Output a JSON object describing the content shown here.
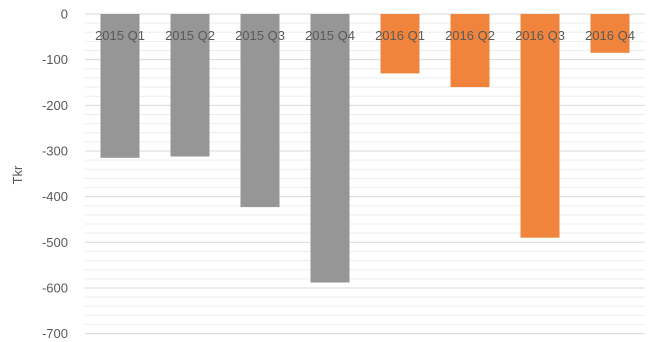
{
  "chart_data": {
    "type": "bar",
    "categories": [
      "2015 Q1",
      "2015 Q2",
      "2015 Q3",
      "2015 Q4",
      "2016 Q1",
      "2016 Q2",
      "2016 Q3",
      "2016 Q4"
    ],
    "values": [
      -315,
      -312,
      -423,
      -588,
      -130,
      -160,
      -490,
      -85
    ],
    "bar_colors": [
      "#969696",
      "#969696",
      "#969696",
      "#969696",
      "#F0843C",
      "#F0843C",
      "#F0843C",
      "#F0843C"
    ],
    "title": "",
    "xlabel": "",
    "ylabel": "Tkr",
    "ylim": [
      -700,
      0
    ],
    "yticks": [
      0,
      -100,
      -200,
      -300,
      -400,
      -500,
      -600,
      -700
    ],
    "grid": true,
    "legend": "none"
  }
}
